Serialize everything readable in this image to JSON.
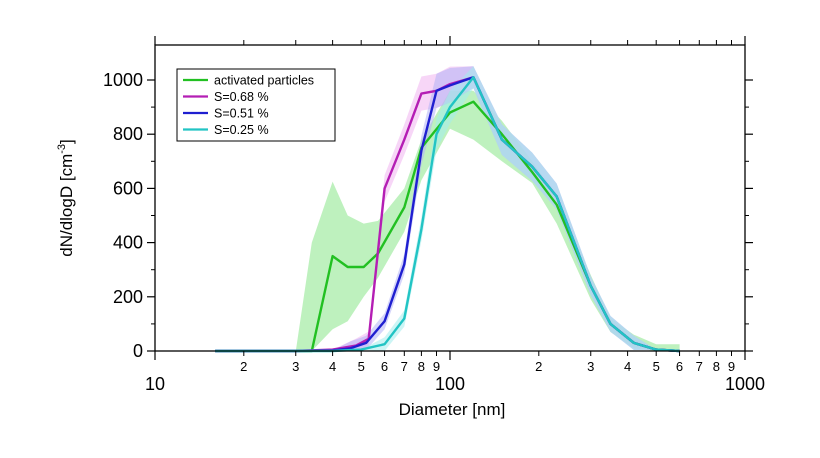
{
  "chart_data": {
    "type": "line",
    "title": "",
    "xlabel": "Diameter [nm]",
    "ylabel_main": "dN/dlogD [cm",
    "ylabel_exp": "-3",
    "ylabel_close": "]",
    "xscale": "log",
    "xlim": [
      10,
      1000
    ],
    "ylim": [
      0,
      1100
    ],
    "grid": false,
    "legend_position": "top-left",
    "x_major_ticks": [
      {
        "value": 10,
        "label": "10"
      },
      {
        "value": 100,
        "label": "100"
      },
      {
        "value": 1000,
        "label": "1000"
      }
    ],
    "x_minor_ticks": [
      {
        "value": 20,
        "label": "2"
      },
      {
        "value": 30,
        "label": "3"
      },
      {
        "value": 40,
        "label": "4"
      },
      {
        "value": 50,
        "label": "5"
      },
      {
        "value": 60,
        "label": "6"
      },
      {
        "value": 70,
        "label": "7"
      },
      {
        "value": 80,
        "label": "8"
      },
      {
        "value": 90,
        "label": "9"
      },
      {
        "value": 200,
        "label": "2"
      },
      {
        "value": 300,
        "label": "3"
      },
      {
        "value": 400,
        "label": "4"
      },
      {
        "value": 500,
        "label": "5"
      },
      {
        "value": 600,
        "label": "6"
      },
      {
        "value": 700,
        "label": "7"
      },
      {
        "value": 800,
        "label": "8"
      },
      {
        "value": 900,
        "label": "9"
      }
    ],
    "y_ticks": [
      {
        "value": 0,
        "label": "0"
      },
      {
        "value": 200,
        "label": "200"
      },
      {
        "value": 400,
        "label": "400"
      },
      {
        "value": 600,
        "label": "600"
      },
      {
        "value": 800,
        "label": "800"
      },
      {
        "value": 1000,
        "label": "1000"
      }
    ],
    "series": [
      {
        "name": "activated particles",
        "color": "#22c022",
        "x": [
          16,
          20,
          25,
          30,
          34,
          40,
          45,
          51,
          57,
          70,
          80,
          100,
          120,
          150,
          190,
          230,
          300,
          350,
          420,
          500,
          600
        ],
        "y": [
          0,
          0,
          0,
          0,
          0,
          350,
          310,
          310,
          360,
          530,
          750,
          880,
          920,
          800,
          660,
          540,
          240,
          100,
          30,
          5,
          0
        ],
        "band_upper": [
          0,
          0,
          0,
          0,
          400,
          625,
          500,
          470,
          480,
          600,
          780,
          960,
          960,
          850,
          700,
          570,
          280,
          120,
          60,
          25,
          25
        ],
        "band_lower": [
          0,
          0,
          0,
          0,
          0,
          80,
          110,
          200,
          270,
          440,
          630,
          820,
          780,
          700,
          620,
          470,
          190,
          70,
          10,
          0,
          0
        ],
        "band_color": "#b3efb3"
      },
      {
        "name": "S=0.68 %",
        "color": "#b41eb4",
        "x": [
          16,
          30,
          40,
          48,
          53,
          60,
          70,
          80,
          90,
          100,
          120,
          150,
          190,
          230,
          300,
          350,
          420,
          500,
          600
        ],
        "y": [
          0,
          0,
          5,
          20,
          45,
          600,
          780,
          950,
          960,
          985,
          1010,
          780,
          680,
          570,
          240,
          100,
          30,
          5,
          0
        ],
        "band_color": "#f0b4f0"
      },
      {
        "name": "S=0.51 %",
        "color": "#1f1fd0",
        "x": [
          16,
          30,
          40,
          46,
          52,
          60,
          70,
          80,
          90,
          100,
          120,
          150,
          190,
          230,
          300,
          350,
          420,
          500,
          600
        ],
        "y": [
          0,
          0,
          2,
          10,
          30,
          110,
          320,
          740,
          960,
          980,
          1010,
          780,
          680,
          570,
          240,
          100,
          30,
          5,
          0
        ],
        "band_color": "#b3b3f5"
      },
      {
        "name": "S=0.25 %",
        "color": "#22c4c4",
        "x": [
          16,
          30,
          40,
          50,
          60,
          70,
          80,
          90,
          100,
          120,
          150,
          190,
          230,
          300,
          350,
          420,
          500,
          600
        ],
        "y": [
          0,
          0,
          0,
          5,
          25,
          120,
          450,
          800,
          900,
          1010,
          780,
          680,
          570,
          240,
          100,
          30,
          5,
          0
        ],
        "band_color": "#a3ecec"
      }
    ]
  }
}
